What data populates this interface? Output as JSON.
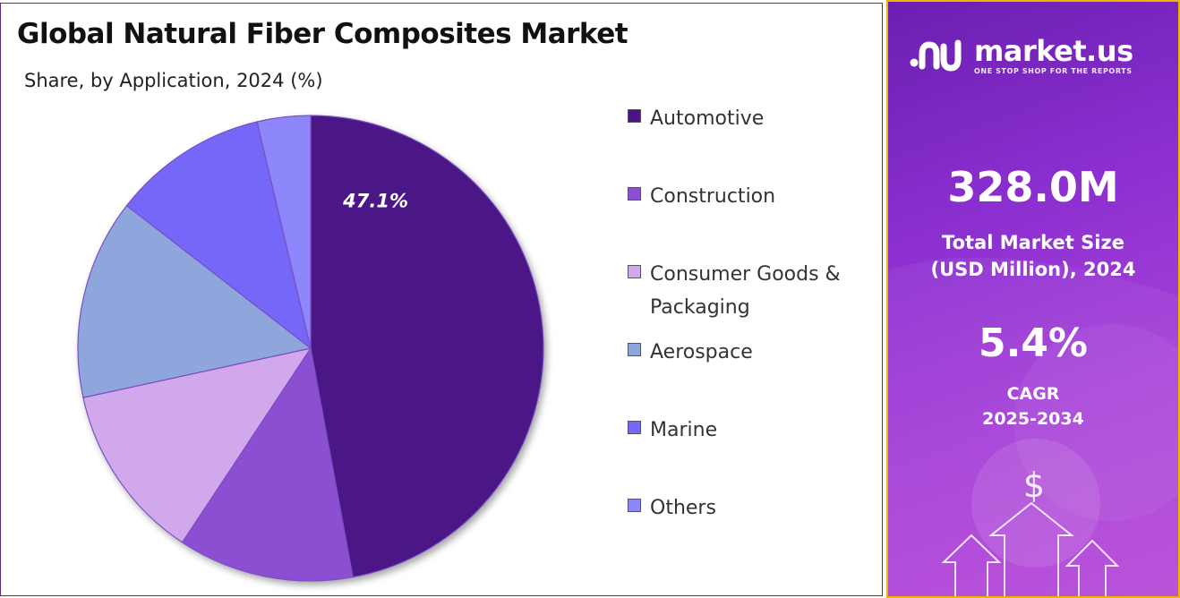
{
  "chart_data": {
    "type": "pie",
    "title": "Global Natural Fiber Composites Market",
    "subtitle": "Share, by Application, 2024 (%)",
    "categories": [
      "Automotive",
      "Construction",
      "Consumer Goods & Packaging",
      "Aerospace",
      "Marine",
      "Others"
    ],
    "values": [
      47.1,
      12.2,
      12.3,
      13.9,
      10.8,
      3.7
    ],
    "data_labels": [
      "47.1%",
      "",
      "",
      "",
      "",
      ""
    ],
    "colors": [
      "#4b1585",
      "#8c4fd2",
      "#d2a8ec",
      "#8fa6dc",
      "#7568f8",
      "#8e86fb"
    ],
    "legend_position": "right",
    "start_angle_deg": 0,
    "direction": "clockwise"
  },
  "sidebar": {
    "brand_name": "market.us",
    "brand_tagline": "ONE STOP SHOP FOR THE REPORTS",
    "market_size_value": "328.0M",
    "market_size_label_line1": "Total Market Size",
    "market_size_label_line2": "(USD Million), 2024",
    "cagr_value": "5.4%",
    "cagr_label_line1": "CAGR",
    "cagr_label_line2": "2025-2034",
    "icons": [
      "market-us-logo-icon",
      "dollar-icon",
      "arrow-up-icon"
    ]
  }
}
